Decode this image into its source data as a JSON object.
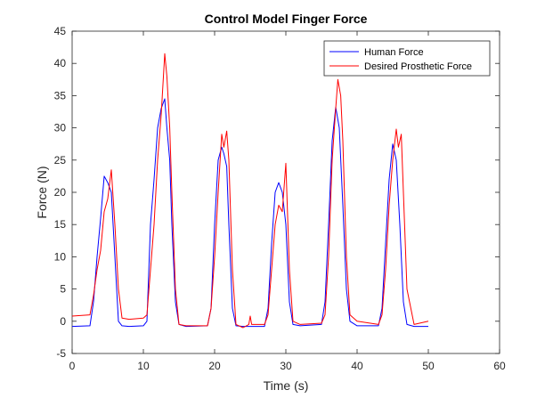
{
  "chart_data": {
    "type": "line",
    "title": "Control Model Finger Force",
    "xlabel": "Time (s)",
    "ylabel": "Force (N)",
    "xlim": [
      0,
      60
    ],
    "ylim": [
      -5,
      45
    ],
    "xticks": [
      0,
      10,
      20,
      30,
      40,
      50,
      60
    ],
    "yticks": [
      -5,
      0,
      5,
      10,
      15,
      20,
      25,
      30,
      35,
      40,
      45
    ],
    "grid": false,
    "legend": "top-right",
    "series": [
      {
        "name": "Human Force",
        "color": "#0000ff",
        "x": [
          0,
          2.5,
          3,
          3.5,
          4,
          4.5,
          5,
          5.5,
          6,
          6.5,
          7,
          8,
          10,
          10.5,
          11,
          11.5,
          12,
          12.5,
          13,
          13.3,
          13.7,
          14,
          14.5,
          15,
          16,
          19,
          19.5,
          20,
          20.5,
          21,
          21.3,
          21.7,
          22,
          22.5,
          23,
          24,
          27,
          27.5,
          28,
          28.5,
          29,
          29.5,
          30,
          30.5,
          31,
          32,
          35,
          35.5,
          36,
          36.5,
          37,
          37.5,
          38,
          38.5,
          39,
          40,
          43,
          43.5,
          44,
          44.5,
          45,
          45.5,
          46,
          46.5,
          47,
          48,
          50
        ],
        "values": [
          -0.8,
          -0.7,
          3,
          10,
          16,
          22.5,
          21.5,
          20,
          10,
          0,
          -0.7,
          -0.8,
          -0.7,
          0,
          15,
          22,
          30,
          33,
          34.5,
          30,
          25,
          15,
          3,
          -0.5,
          -0.8,
          -0.7,
          2,
          15,
          25,
          27,
          26,
          24,
          15,
          2,
          -0.7,
          -0.8,
          -0.8,
          2,
          12,
          20,
          21.5,
          20,
          15,
          3,
          -0.5,
          -0.7,
          -0.5,
          3,
          15,
          28,
          33.2,
          30,
          18,
          5,
          0,
          -0.7,
          -0.7,
          2,
          12,
          22,
          27.5,
          25,
          15,
          3,
          -0.5,
          -0.8,
          -0.8
        ]
      },
      {
        "name": "Desired Prosthetic Force",
        "color": "#ff0000",
        "x": [
          0,
          2.5,
          3,
          3.5,
          4,
          4.5,
          5,
          5.5,
          6,
          6.5,
          7,
          8,
          10,
          10.5,
          11,
          11.5,
          12,
          12.5,
          13,
          13.3,
          13.7,
          14,
          14.5,
          15,
          16,
          19,
          19.5,
          20,
          20.5,
          21,
          21.3,
          21.7,
          22,
          22.5,
          23,
          24,
          24.8,
          25,
          25.2,
          27,
          27.5,
          28,
          28.5,
          29,
          29.5,
          30,
          30.5,
          31,
          32,
          35,
          35.5,
          36,
          36.5,
          37,
          37.3,
          37.7,
          38,
          38.5,
          39,
          40,
          43,
          43.5,
          44,
          44.5,
          45,
          45.5,
          45.8,
          46.2,
          46.5,
          47,
          48,
          50
        ],
        "values": [
          0.8,
          1,
          4,
          8,
          11,
          17,
          19,
          23.5,
          15,
          5,
          0.5,
          0.3,
          0.5,
          1,
          8,
          15,
          25,
          32,
          41.5,
          38,
          30,
          20,
          5,
          -0.5,
          -0.7,
          -0.7,
          2,
          10,
          20,
          29,
          27,
          29.5,
          25,
          8,
          -0.5,
          -1,
          -0.5,
          0.8,
          -0.5,
          -0.5,
          1,
          8,
          15,
          18,
          17,
          24.5,
          8,
          0,
          -0.5,
          -0.3,
          1,
          10,
          25,
          33,
          37.5,
          35,
          28,
          10,
          1,
          0,
          -0.5,
          1,
          8,
          18,
          25,
          29.8,
          27,
          29,
          20,
          5,
          -0.5,
          0
        ]
      }
    ]
  }
}
